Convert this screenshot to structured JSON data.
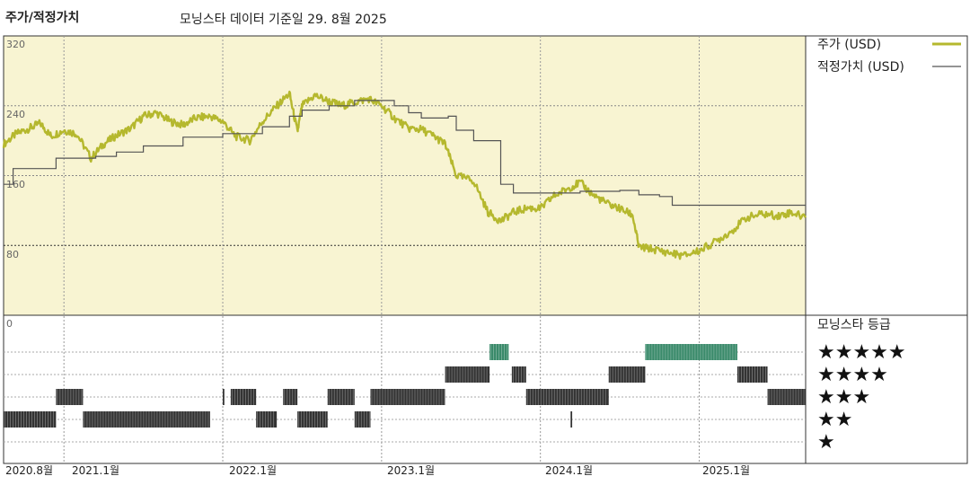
{
  "title": "주가/적정가치",
  "subtitle": "모닝스타 데이터 기준일 29. 8월 2025",
  "colors": {
    "price": "#b5b82e",
    "fair_value": "#555555",
    "upper_panel_bg": "#f8f4d2",
    "rating_5": "#3a8a6a",
    "rating_bar": "#333333"
  },
  "legend": {
    "price": "주가 (USD)",
    "fair_value": "적정가치 (USD)"
  },
  "rating_title": "모닝스타 등급",
  "star_labels": [
    "★★★★★",
    "★★★★",
    "★★★",
    "★★",
    "★"
  ],
  "chart_data": {
    "type": "line",
    "title": "주가/적정가치",
    "y_ticks": [
      "320",
      "240",
      "160",
      "80",
      "0"
    ],
    "ylim": [
      0,
      320
    ],
    "x_ticks": [
      "2020.8월",
      "2021.1월",
      "2022.1월",
      "2023.1월",
      "2024.1월",
      "2025.1월"
    ],
    "x_tick_dates": [
      "2020.67",
      "2021.0",
      "2022.0",
      "2023.0",
      "2024.0",
      "2025.0"
    ],
    "xlim": [
      2020.62,
      2025.67
    ],
    "series": [
      {
        "name": "주가 (USD)",
        "points": [
          [
            2020.62,
            196
          ],
          [
            2020.7,
            208
          ],
          [
            2020.78,
            214
          ],
          [
            2020.85,
            220
          ],
          [
            2020.92,
            205
          ],
          [
            2021.0,
            212
          ],
          [
            2021.08,
            208
          ],
          [
            2021.17,
            180
          ],
          [
            2021.25,
            196
          ],
          [
            2021.33,
            206
          ],
          [
            2021.42,
            214
          ],
          [
            2021.5,
            228
          ],
          [
            2021.58,
            232
          ],
          [
            2021.67,
            222
          ],
          [
            2021.75,
            218
          ],
          [
            2021.83,
            226
          ],
          [
            2021.92,
            228
          ],
          [
            2022.0,
            222
          ],
          [
            2022.08,
            205
          ],
          [
            2022.17,
            200
          ],
          [
            2022.25,
            222
          ],
          [
            2022.33,
            238
          ],
          [
            2022.42,
            254
          ],
          [
            2022.47,
            210
          ],
          [
            2022.5,
            240
          ],
          [
            2022.58,
            252
          ],
          [
            2022.67,
            245
          ],
          [
            2022.75,
            240
          ],
          [
            2022.83,
            244
          ],
          [
            2022.92,
            248
          ],
          [
            2023.0,
            240
          ],
          [
            2023.08,
            226
          ],
          [
            2023.17,
            214
          ],
          [
            2023.25,
            213
          ],
          [
            2023.33,
            205
          ],
          [
            2023.4,
            196
          ],
          [
            2023.47,
            160
          ],
          [
            2023.58,
            154
          ],
          [
            2023.67,
            118
          ],
          [
            2023.75,
            108
          ],
          [
            2023.83,
            118
          ],
          [
            2023.92,
            123
          ],
          [
            2024.0,
            122
          ],
          [
            2024.08,
            136
          ],
          [
            2024.17,
            145
          ],
          [
            2024.25,
            152
          ],
          [
            2024.33,
            138
          ],
          [
            2024.42,
            128
          ],
          [
            2024.5,
            122
          ],
          [
            2024.58,
            115
          ],
          [
            2024.62,
            78
          ],
          [
            2024.7,
            76
          ],
          [
            2024.8,
            72
          ],
          [
            2024.9,
            68
          ],
          [
            2025.0,
            74
          ],
          [
            2025.1,
            84
          ],
          [
            2025.2,
            96
          ],
          [
            2025.3,
            112
          ],
          [
            2025.4,
            116
          ],
          [
            2025.5,
            114
          ],
          [
            2025.58,
            118
          ],
          [
            2025.67,
            112
          ]
        ]
      },
      {
        "name": "적정가치 (USD)",
        "points": [
          [
            2020.62,
            150
          ],
          [
            2020.68,
            168
          ],
          [
            2020.95,
            180
          ],
          [
            2021.2,
            182
          ],
          [
            2021.33,
            187
          ],
          [
            2021.5,
            194
          ],
          [
            2021.75,
            204
          ],
          [
            2022.0,
            208
          ],
          [
            2022.25,
            216
          ],
          [
            2022.42,
            228
          ],
          [
            2022.5,
            235
          ],
          [
            2022.67,
            240
          ],
          [
            2022.83,
            246
          ],
          [
            2023.0,
            246
          ],
          [
            2023.08,
            240
          ],
          [
            2023.17,
            232
          ],
          [
            2023.25,
            226
          ],
          [
            2023.42,
            228
          ],
          [
            2023.47,
            212
          ],
          [
            2023.58,
            200
          ],
          [
            2023.75,
            150
          ],
          [
            2023.83,
            140
          ],
          [
            2024.0,
            140
          ],
          [
            2024.25,
            142
          ],
          [
            2024.5,
            143
          ],
          [
            2024.62,
            138
          ],
          [
            2024.75,
            136
          ],
          [
            2024.83,
            126
          ],
          [
            2025.0,
            126
          ],
          [
            2025.25,
            126
          ],
          [
            2025.5,
            126
          ],
          [
            2025.67,
            126
          ]
        ]
      }
    ],
    "rating_segments": [
      {
        "stars": 2,
        "start": 2020.62,
        "end": 2020.95
      },
      {
        "stars": 3,
        "start": 2020.95,
        "end": 2021.12
      },
      {
        "stars": 2,
        "start": 2021.12,
        "end": 2021.92
      },
      {
        "stars": 3,
        "start": 2022.0,
        "end": 2022.01
      },
      {
        "stars": 3,
        "start": 2022.05,
        "end": 2022.21
      },
      {
        "stars": 2,
        "start": 2022.21,
        "end": 2022.34
      },
      {
        "stars": 3,
        "start": 2022.38,
        "end": 2022.47
      },
      {
        "stars": 2,
        "start": 2022.47,
        "end": 2022.66
      },
      {
        "stars": 3,
        "start": 2022.66,
        "end": 2022.83
      },
      {
        "stars": 2,
        "start": 2022.83,
        "end": 2022.93
      },
      {
        "stars": 3,
        "start": 2022.93,
        "end": 2023.4
      },
      {
        "stars": 4,
        "start": 2023.4,
        "end": 2023.68
      },
      {
        "stars": 5,
        "start": 2023.68,
        "end": 2023.8
      },
      {
        "stars": 4,
        "start": 2023.82,
        "end": 2023.91
      },
      {
        "stars": 3,
        "start": 2023.91,
        "end": 2024.43
      },
      {
        "stars": 2,
        "start": 2024.19,
        "end": 2024.2
      },
      {
        "stars": 4,
        "start": 2024.43,
        "end": 2024.66
      },
      {
        "stars": 5,
        "start": 2024.66,
        "end": 2025.24
      },
      {
        "stars": 4,
        "start": 2025.24,
        "end": 2025.43
      },
      {
        "stars": 3,
        "start": 2025.43,
        "end": 2025.67
      }
    ]
  }
}
